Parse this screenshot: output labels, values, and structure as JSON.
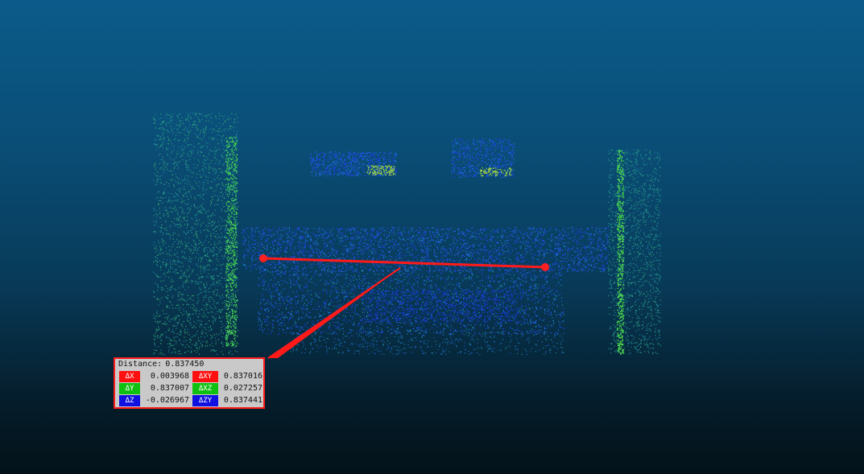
{
  "measurement": {
    "distance_label": "Distance:",
    "distance_value": "0.837450",
    "rows": [
      {
        "a_label": "ΔX",
        "a_value": "0.003968",
        "a_color": "#ff1010",
        "b_label": "ΔXY",
        "b_value": "0.837016",
        "b_color": "#ff1010"
      },
      {
        "a_label": "ΔY",
        "a_value": "0.837007",
        "a_color": "#10c010",
        "b_label": "ΔXZ",
        "b_value": "0.027257",
        "b_color": "#10c010"
      },
      {
        "a_label": "ΔZ",
        "a_value": "-0.026967",
        "a_color": "#1010e0",
        "b_label": "ΔZY",
        "b_value": "0.837441",
        "b_color": "#1010e0"
      }
    ],
    "line_color": "#ff1a1a"
  }
}
